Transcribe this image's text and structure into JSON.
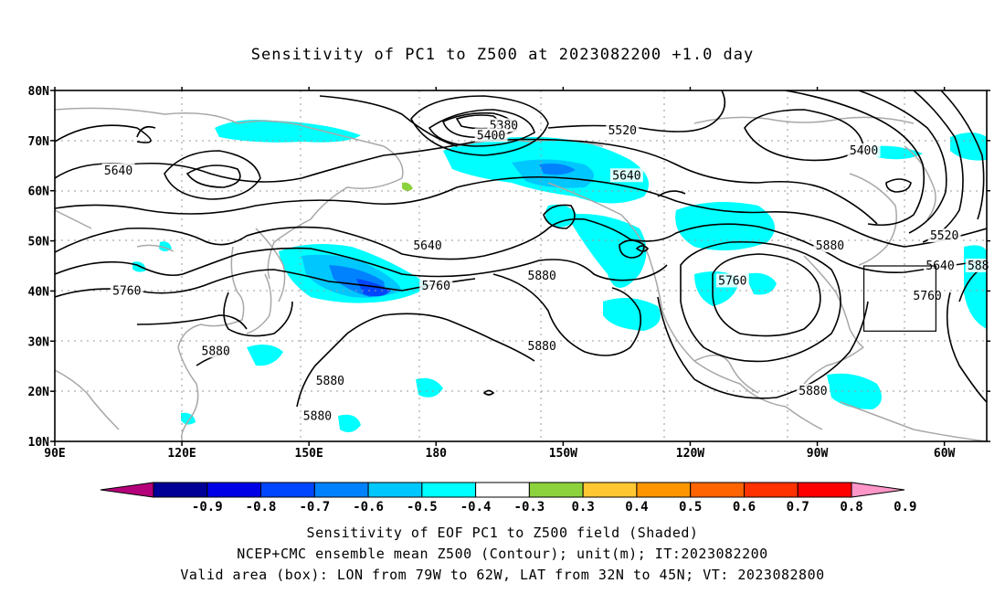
{
  "title": "Sensitivity of PC1 to Z500 at 2023082200 +1.0 day",
  "map": {
    "lon_ticks": [
      "90E",
      "120E",
      "150E",
      "180",
      "150W",
      "120W",
      "90W",
      "60W"
    ],
    "lat_ticks": [
      "80N",
      "70N",
      "60N",
      "50N",
      "40N",
      "30N",
      "20N",
      "10N"
    ],
    "lon_range": [
      90,
      310
    ],
    "lat_range": [
      10,
      80
    ],
    "grid": true,
    "contour_labels": [
      {
        "text": "5640",
        "lon": 105,
        "lat": 64
      },
      {
        "text": "5760",
        "lon": 107,
        "lat": 40
      },
      {
        "text": "5880",
        "lon": 128,
        "lat": 28
      },
      {
        "text": "5880",
        "lon": 155,
        "lat": 22
      },
      {
        "text": "5880",
        "lon": 152,
        "lat": 15
      },
      {
        "text": "5380",
        "lon": 196,
        "lat": 73
      },
      {
        "text": "5400",
        "lon": 193,
        "lat": 71
      },
      {
        "text": "5520",
        "lon": 224,
        "lat": 72
      },
      {
        "text": "5640",
        "lon": 225,
        "lat": 63
      },
      {
        "text": "5640",
        "lon": 178,
        "lat": 49
      },
      {
        "text": "5760",
        "lon": 180,
        "lat": 41
      },
      {
        "text": "5880",
        "lon": 205,
        "lat": 43
      },
      {
        "text": "5880",
        "lon": 205,
        "lat": 29
      },
      {
        "text": "5760",
        "lon": 250,
        "lat": 42
      },
      {
        "text": "5880",
        "lon": 273,
        "lat": 49
      },
      {
        "text": "5880",
        "lon": 269,
        "lat": 20
      },
      {
        "text": "5400",
        "lon": 281,
        "lat": 68
      },
      {
        "text": "5520",
        "lon": 300,
        "lat": 51
      },
      {
        "text": "5640",
        "lon": 299,
        "lat": 45
      },
      {
        "text": "5760",
        "lon": 296,
        "lat": 39
      },
      {
        "text": "588",
        "lon": 308,
        "lat": 45
      }
    ],
    "valid_box": {
      "lon_min": 281,
      "lon_max": 298,
      "lat_min": 32,
      "lat_max": 45
    }
  },
  "colorbar": {
    "labels": [
      "-0.9",
      "-0.8",
      "-0.7",
      "-0.6",
      "-0.5",
      "-0.4",
      "-0.3",
      "0.3",
      "0.4",
      "0.5",
      "0.6",
      "0.7",
      "0.8",
      "0.9"
    ],
    "colors": [
      "#000096",
      "#0000e6",
      "#0046ff",
      "#0082ff",
      "#00c8ff",
      "#00ffff",
      "#ffffff",
      "#8cd23c",
      "#ffc832",
      "#ff9600",
      "#ff6400",
      "#ff3200",
      "#ff0000"
    ],
    "low_end_color": "#b4007a",
    "high_end_color": "#ff96c8"
  },
  "captions": {
    "line1": "Sensitivity of EOF PC1 to Z500 field (Shaded)",
    "line2": "NCEP+CMC ensemble mean Z500 (Contour); unit(m); IT:2023082200",
    "line3": "Valid area (box): LON from 79W to 62W, LAT from 32N to 45N; VT: 2023082800"
  }
}
